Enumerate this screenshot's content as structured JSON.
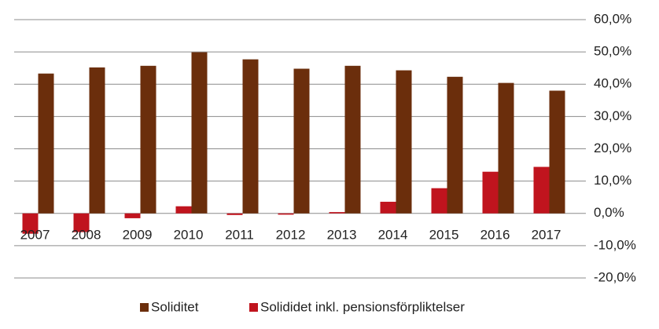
{
  "chart_data": {
    "type": "bar",
    "categories": [
      "2007",
      "2008",
      "2009",
      "2010",
      "2011",
      "2012",
      "2013",
      "2014",
      "2015",
      "2016",
      "2017"
    ],
    "series": [
      {
        "name": "Soliditet",
        "color": "#6b2e0c",
        "values": [
          43.3,
          45.2,
          45.7,
          49.9,
          47.7,
          44.8,
          45.7,
          44.3,
          42.3,
          40.4,
          38.0
        ]
      },
      {
        "name": "Solididet inkl. pensionsförpliktelser",
        "color": "#c0141e",
        "values": [
          -6.3,
          -5.8,
          -1.5,
          2.2,
          -0.5,
          -0.4,
          0.4,
          3.6,
          7.8,
          12.9,
          14.4
        ]
      }
    ],
    "ylim": [
      -20,
      60
    ],
    "yticks": [
      {
        "value": -20,
        "label": "-20,0%"
      },
      {
        "value": -10,
        "label": "-10,0%"
      },
      {
        "value": 0,
        "label": "0,0%"
      },
      {
        "value": 10,
        "label": "10,0%"
      },
      {
        "value": 20,
        "label": "20,0%"
      },
      {
        "value": 30,
        "label": "30,0%"
      },
      {
        "value": 40,
        "label": "40,0%"
      },
      {
        "value": 50,
        "label": "50,0%"
      },
      {
        "value": 60,
        "label": "60,0%"
      }
    ],
    "grid": true,
    "legend": "bottom"
  }
}
